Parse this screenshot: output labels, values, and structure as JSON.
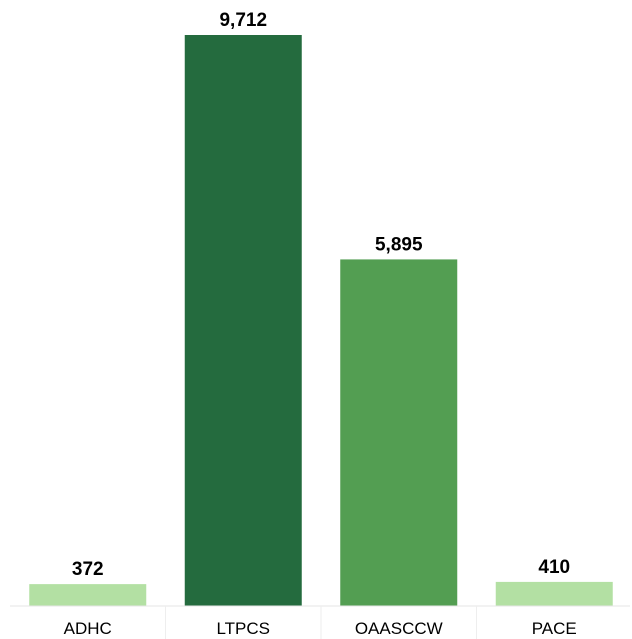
{
  "chart_data": {
    "type": "bar",
    "categories": [
      "ADHC",
      "LTPCS",
      "OAASCCW",
      "PACE"
    ],
    "values": [
      372,
      9712,
      5895,
      410
    ],
    "value_labels": [
      "372",
      "9,712",
      "5,895",
      "410"
    ],
    "colors": [
      "#b3e0a3",
      "#246b3e",
      "#539e52",
      "#b3e0a3"
    ],
    "title": "",
    "xlabel": "",
    "ylabel": "",
    "ylim": [
      0,
      9712
    ],
    "grid": false,
    "legend": "none"
  }
}
